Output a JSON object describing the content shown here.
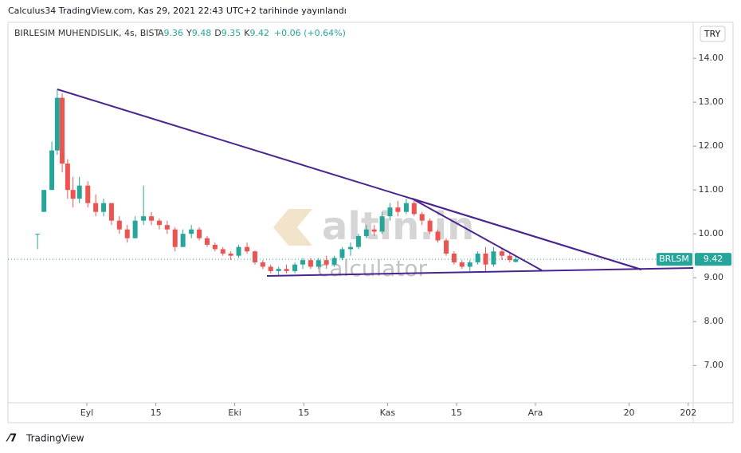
{
  "publish_note": "Calculus34 TradingView.com, Kas 29, 2021 22:43 UTC+2 tarihinde yayınlandı",
  "footer": "TradingView",
  "watermark": {
    "brand": "altin.in",
    "sub": "calculator"
  },
  "chart_data": {
    "type": "candlestick",
    "title": "BIRLESIM MUHENDISLIK, 4s, BIST",
    "ohlc_labels": {
      "open": "A",
      "high": "Y",
      "low": "D",
      "close": "K"
    },
    "change": "+0.06 (+0.64%)",
    "currency": "TRY",
    "symbol": "BRLSM",
    "up_color": "#26a69a",
    "down_color": "#ef5350",
    "x": [
      -9.0,
      -7.7,
      -6.1,
      -5.0,
      -4.0,
      -2.9,
      -1.8,
      -0.5,
      1.2,
      2.8,
      4.4,
      6.0,
      7.6,
      9.2,
      10.8,
      12.5,
      14.1,
      15.7,
      17.3,
      18.9,
      20.5,
      22.2,
      23.8,
      25.4,
      27.0,
      28.6,
      30.2,
      31.8,
      33.5,
      35.1,
      36.7,
      38.3,
      39.9,
      41.5,
      43.2,
      44.8,
      46.4,
      48.0,
      49.6,
      51.2,
      52.8,
      54.5,
      56.1,
      57.7,
      59.3,
      60.9,
      62.5,
      64.1,
      65.8,
      67.4,
      69.0,
      70.6,
      72.2,
      73.9,
      75.5,
      77.1,
      78.7,
      80.3,
      81.9,
      83.5,
      85.2,
      86.8,
      88.0
    ],
    "open": [
      10.0,
      10.5,
      11.0,
      11.9,
      13.1,
      11.6,
      11.0,
      10.8,
      11.1,
      10.7,
      10.5,
      10.7,
      10.3,
      10.1,
      9.9,
      10.3,
      10.4,
      10.3,
      10.2,
      10.1,
      9.7,
      10.0,
      10.1,
      9.9,
      9.75,
      9.65,
      9.55,
      9.5,
      9.7,
      9.6,
      9.35,
      9.25,
      9.15,
      9.2,
      9.15,
      9.3,
      9.4,
      9.25,
      9.4,
      9.3,
      9.45,
      9.65,
      9.7,
      9.95,
      10.1,
      10.05,
      10.4,
      10.6,
      10.5,
      10.7,
      10.45,
      10.3,
      10.05,
      9.85,
      9.55,
      9.35,
      9.25,
      9.35,
      9.55,
      9.3,
      9.6,
      9.5,
      9.36
    ],
    "high": [
      10.0,
      11.0,
      12.1,
      13.3,
      13.2,
      11.7,
      11.3,
      11.3,
      11.2,
      10.9,
      10.8,
      10.7,
      10.4,
      10.2,
      10.4,
      11.1,
      10.5,
      10.35,
      10.3,
      10.15,
      10.1,
      10.2,
      10.15,
      9.95,
      9.8,
      9.7,
      9.6,
      9.75,
      9.8,
      9.62,
      9.4,
      9.3,
      9.25,
      9.3,
      9.35,
      9.45,
      9.45,
      9.45,
      9.5,
      9.5,
      9.7,
      9.8,
      10.0,
      10.2,
      10.2,
      10.5,
      10.7,
      10.75,
      10.8,
      10.75,
      10.5,
      10.35,
      10.1,
      9.9,
      9.6,
      9.4,
      9.4,
      9.6,
      9.7,
      9.7,
      9.65,
      9.55,
      9.48
    ],
    "low": [
      9.65,
      10.5,
      11.0,
      11.8,
      11.4,
      10.8,
      10.6,
      10.7,
      10.6,
      10.4,
      10.4,
      10.2,
      10.0,
      9.8,
      9.9,
      10.2,
      10.2,
      10.1,
      10.0,
      9.6,
      9.7,
      9.9,
      9.85,
      9.7,
      9.6,
      9.5,
      9.4,
      9.45,
      9.55,
      9.3,
      9.2,
      9.1,
      9.05,
      9.1,
      9.1,
      9.2,
      9.2,
      9.2,
      9.2,
      9.25,
      9.4,
      9.5,
      9.65,
      9.9,
      9.95,
      10.0,
      10.3,
      10.4,
      10.45,
      10.4,
      10.2,
      10.0,
      9.8,
      9.5,
      9.3,
      9.2,
      9.15,
      9.3,
      9.15,
      9.25,
      9.4,
      9.35,
      9.35
    ],
    "close": [
      10.0,
      11.0,
      11.9,
      13.1,
      11.6,
      11.0,
      10.8,
      11.1,
      10.7,
      10.5,
      10.7,
      10.3,
      10.1,
      9.9,
      10.3,
      10.4,
      10.3,
      10.2,
      10.1,
      9.7,
      10.0,
      10.1,
      9.9,
      9.75,
      9.65,
      9.55,
      9.5,
      9.7,
      9.6,
      9.35,
      9.25,
      9.15,
      9.2,
      9.15,
      9.3,
      9.4,
      9.25,
      9.4,
      9.3,
      9.45,
      9.65,
      9.7,
      9.95,
      10.1,
      10.05,
      10.4,
      10.6,
      10.5,
      10.7,
      10.45,
      10.3,
      10.05,
      9.85,
      9.55,
      9.35,
      9.25,
      9.35,
      9.55,
      9.3,
      9.6,
      9.5,
      9.4,
      9.42
    ],
    "xlim": [
      -15,
      124
    ],
    "xticks": [
      {
        "value": 1,
        "label": "Eyl"
      },
      15,
      {
        "value": 31,
        "label": "Eki"
      },
      {
        "value": 45,
        "label": "15"
      },
      {
        "value": 62,
        "label": "Kas"
      },
      {
        "value": 76,
        "label": "15"
      },
      {
        "value": 92,
        "label": "Ara"
      },
      {
        "value": 111,
        "label": "20"
      },
      {
        "value": 123,
        "label": "202"
      }
    ],
    "ylim": [
      6.15,
      14.82
    ],
    "yticks": [
      {
        "value": 7,
        "label": "7.00"
      },
      {
        "value": 8,
        "label": "8.00"
      },
      {
        "value": 9,
        "label": "9.00"
      },
      {
        "value": 10,
        "label": "10.00"
      },
      {
        "value": 11,
        "label": "11.00"
      },
      {
        "value": 12,
        "label": "12.00"
      },
      {
        "value": 13,
        "label": "13.00"
      },
      {
        "value": 14,
        "label": "14.00"
      }
    ]
  }
}
